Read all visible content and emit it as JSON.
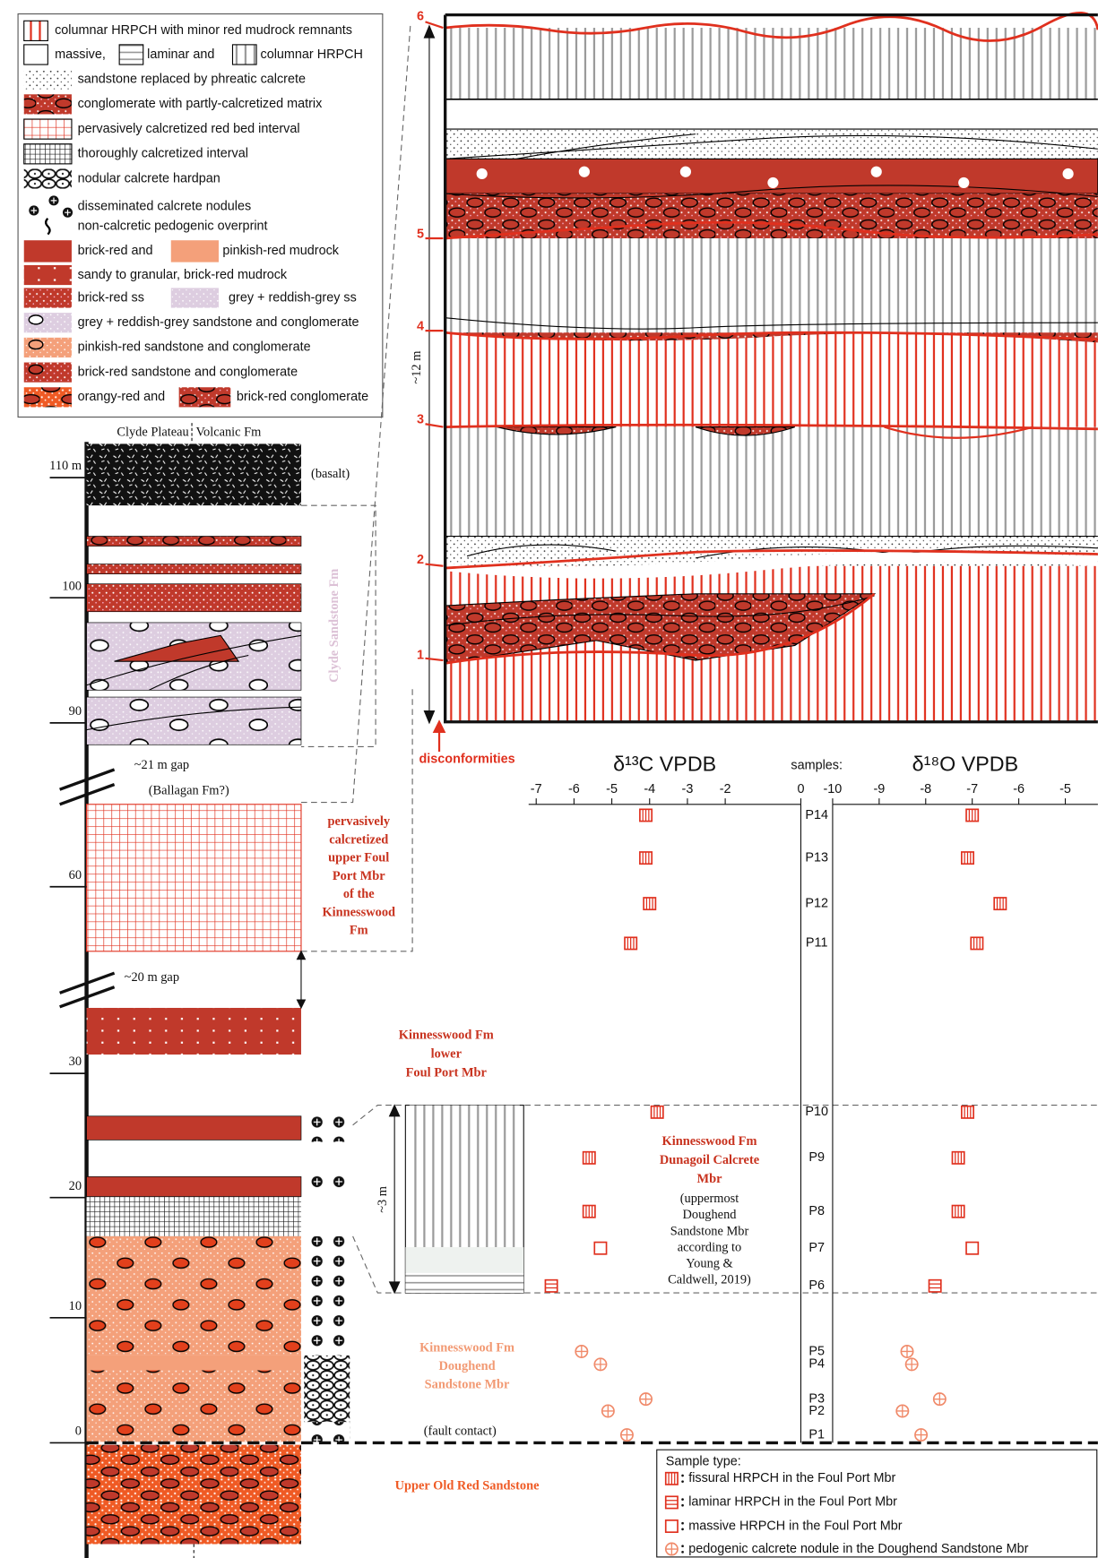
{
  "legend": [
    [
      "columnar HRPCH with minor red mudrock remnants"
    ],
    [
      "massive,",
      "laminar and",
      "columnar HRPCH"
    ],
    [
      "sandstone replaced by phreatic calcrete"
    ],
    [
      "conglomerate with partly-calcretized matrix"
    ],
    [
      "pervasively calcretized red bed interval"
    ],
    [
      "thoroughly calcretized interval"
    ],
    [
      "nodular calcrete hardpan"
    ],
    [
      "disseminated calcrete nodules"
    ],
    [
      "non-calcretic pedogenic overprint"
    ],
    [
      "brick-red and",
      "pinkish-red mudrock"
    ],
    [
      "sandy to granular, brick-red mudrock"
    ],
    [
      "brick-red ss",
      "grey + reddish-grey  ss"
    ],
    [
      "grey + reddish-grey sandstone and conglomerate"
    ],
    [
      "pinkish-red sandstone and conglomerate"
    ],
    [
      "brick-red sandstone and conglomerate"
    ],
    [
      "orangy-red and",
      "brick-red conglomerate"
    ]
  ],
  "column": {
    "header": [
      "Clyde Plateau",
      "Volcanic Fm"
    ],
    "heights": [
      "110 m",
      "100",
      "90",
      "60",
      "30",
      "20",
      "10",
      "0"
    ],
    "labels": {
      "basalt": "(basalt)",
      "clyde": "Clyde Sandstone Fm",
      "gap21": "~21 m gap",
      "ballagan": "(Ballagan Fm?)",
      "upper_foul_port": [
        "pervasively",
        "calcretized",
        "upper Foul",
        "Port Mbr",
        "of the",
        "Kinnesswood",
        "Fm"
      ],
      "gap20": "~20 m gap",
      "lower_foul_port": [
        "Kinnesswood Fm",
        "lower",
        "Foul Port Mbr"
      ],
      "dunagoil": [
        "Kinnesswood Fm",
        "Dunagoil Calcrete",
        "Mbr"
      ],
      "dunagoil_note": [
        "(uppermost",
        "Doughend",
        "Sandstone Mbr",
        "according to",
        "Young &",
        "Caldwell, 2019)"
      ],
      "doughend": [
        "Kinnesswood Fm",
        "Doughend",
        "Sandstone Mbr"
      ],
      "fault": "(fault contact)",
      "uors": "Upper Old Red Sandstone",
      "three_m": "~3 m"
    }
  },
  "detail": {
    "height": "~12 m",
    "disconformity_numbers": [
      6,
      5,
      4,
      3,
      2,
      1
    ],
    "disconformities": "disconformities"
  },
  "samples_label": "samples:",
  "sample_legend_title": "Sample type:",
  "chart_data": [
    {
      "type": "scatter",
      "title": "δ¹³C VPDB",
      "xlim": [
        -7.2,
        0
      ],
      "xticks": [
        -7,
        -6,
        -5,
        -4,
        -3,
        -2,
        0
      ],
      "categories": [
        "P14",
        "P13",
        "P12",
        "P11",
        "P10",
        "P9",
        "P8",
        "P7",
        "P6",
        "P5",
        "P4",
        "P3",
        "P2",
        "P1"
      ],
      "series": [
        {
          "name": "fissural HRPCH in the Foul Port Mbr",
          "color": "#e0301e",
          "values": [
            -4.1,
            -4.1,
            -4.0,
            -4.5,
            -3.8,
            -5.6,
            -5.6,
            null,
            null,
            null,
            null,
            null,
            null,
            null
          ]
        },
        {
          "name": "laminar HRPCH in the Foul Port Mbr",
          "color": "#e0301e",
          "values": [
            null,
            null,
            null,
            null,
            null,
            null,
            null,
            null,
            -6.6,
            null,
            null,
            null,
            null,
            null
          ]
        },
        {
          "name": "massive HRPCH in the Foul Port Mbr",
          "color": "#e0301e",
          "values": [
            null,
            null,
            null,
            null,
            null,
            null,
            null,
            -5.3,
            null,
            null,
            null,
            null,
            null,
            null
          ]
        },
        {
          "name": "pedogenic calcrete nodule in the Doughend Sandstone Mbr",
          "color": "#f08a6a",
          "values": [
            null,
            null,
            null,
            null,
            null,
            null,
            null,
            null,
            null,
            -5.8,
            -5.3,
            -4.1,
            -5.1,
            -4.6
          ]
        }
      ]
    },
    {
      "type": "scatter",
      "title": "δ¹⁸O VPDB",
      "xlim": [
        -10,
        -4.3
      ],
      "xticks": [
        -10,
        -9,
        -8,
        -7,
        -6,
        -5
      ],
      "series": [
        {
          "color": "#e0301e",
          "values": [
            -7.0,
            -7.1,
            -6.4,
            -6.9,
            -7.1,
            -7.3,
            -7.3,
            null,
            null,
            null,
            null,
            null,
            null,
            null
          ]
        },
        {
          "color": "#e0301e",
          "values": [
            null,
            null,
            null,
            null,
            null,
            null,
            null,
            null,
            -7.8,
            null,
            null,
            null,
            null,
            null
          ]
        },
        {
          "color": "#e0301e",
          "values": [
            null,
            null,
            null,
            null,
            null,
            null,
            null,
            -7.0,
            null,
            null,
            null,
            null,
            null,
            null
          ]
        },
        {
          "color": "#f08a6a",
          "values": [
            null,
            null,
            null,
            null,
            null,
            null,
            null,
            null,
            null,
            -8.4,
            -8.3,
            -7.7,
            -8.5,
            -8.1
          ]
        }
      ]
    }
  ]
}
